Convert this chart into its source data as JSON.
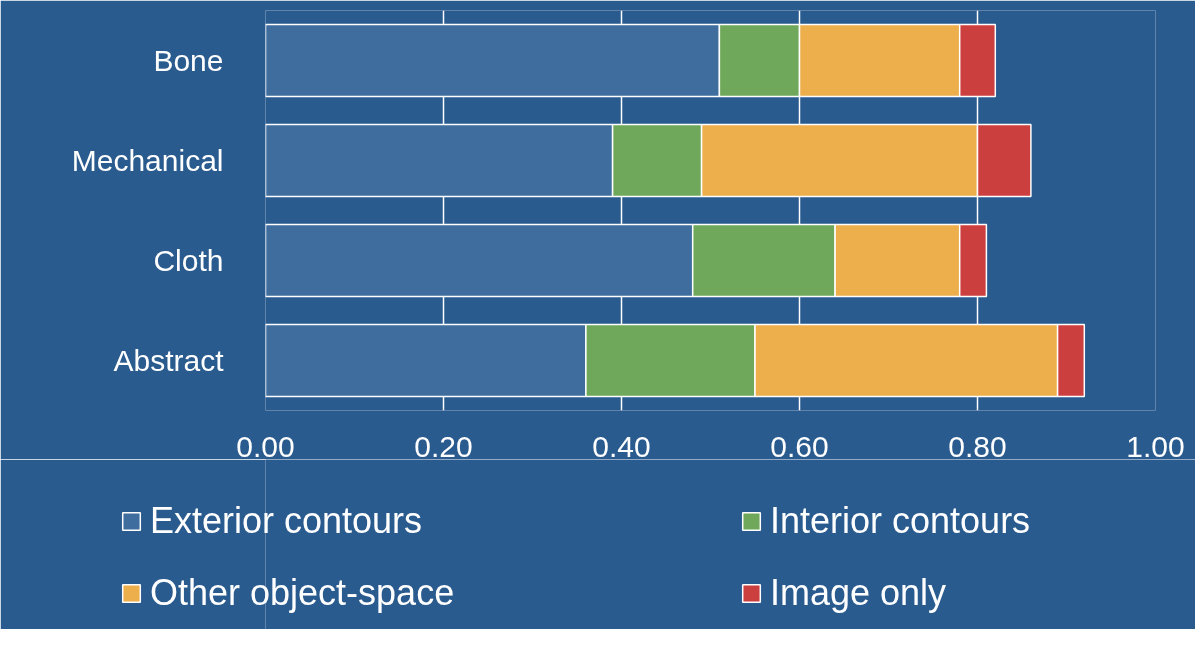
{
  "chart_data": {
    "type": "bar",
    "orientation": "horizontal",
    "stacked": true,
    "categories": [
      "Bone",
      "Mechanical",
      "Cloth",
      "Abstract"
    ],
    "series": [
      {
        "name": "Exterior contours",
        "color": "#3f6d9e",
        "values": [
          0.51,
          0.39,
          0.48,
          0.36
        ]
      },
      {
        "name": "Interior contours",
        "color": "#6fa85a",
        "values": [
          0.09,
          0.1,
          0.16,
          0.19
        ]
      },
      {
        "name": "Other object-space",
        "color": "#edae4c",
        "values": [
          0.18,
          0.31,
          0.14,
          0.34
        ]
      },
      {
        "name": "Image only",
        "color": "#cc3f3f",
        "values": [
          0.04,
          0.06,
          0.03,
          0.03
        ]
      }
    ],
    "xlim": [
      0,
      1
    ],
    "xticks": [
      {
        "value": 0,
        "label": "0.00"
      },
      {
        "value": 0.2,
        "label": "0.20"
      },
      {
        "value": 0.4,
        "label": "0.40"
      },
      {
        "value": 0.6,
        "label": "0.60"
      },
      {
        "value": 0.8,
        "label": "0.80"
      },
      {
        "value": 1,
        "label": "1.00"
      }
    ],
    "grid": "x",
    "legend": "bottom"
  }
}
